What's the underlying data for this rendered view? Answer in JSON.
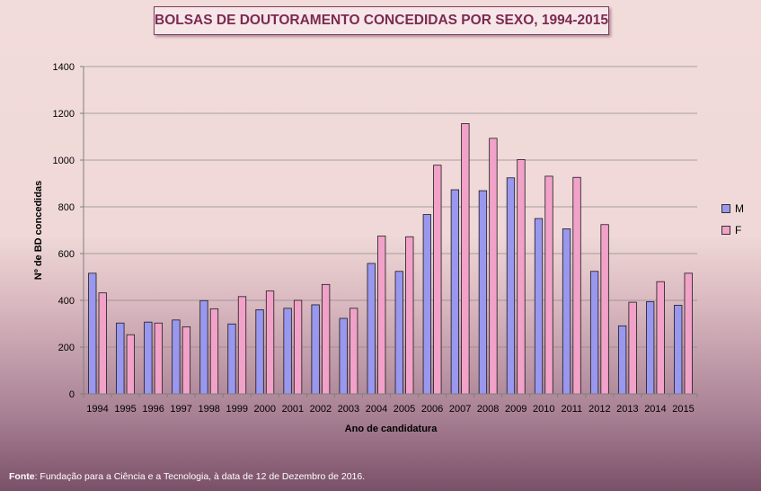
{
  "title": "BOLSAS DE DOUTORAMENTO CONCEDIDAS POR SEXO, 1994-2015",
  "source": {
    "label": "Fonte",
    "text": ": Fundação para a Ciência e a Tecnologia, à data de 12 de Dezembro de 2016."
  },
  "colors": {
    "M": "#9a97ee",
    "F": "#f2a2c8"
  },
  "chart_data": {
    "type": "bar",
    "title": "BOLSAS DE DOUTORAMENTO CONCEDIDAS POR SEXO, 1994-2015",
    "xlabel": "Ano de candidatura",
    "ylabel": "Nº de BD concedidas",
    "ylim": [
      0,
      1400
    ],
    "yticks": [
      0,
      200,
      400,
      600,
      800,
      1000,
      1200,
      1400
    ],
    "grid": true,
    "legend": "right",
    "categories": [
      "1994",
      "1995",
      "1996",
      "1997",
      "1998",
      "1999",
      "2000",
      "2001",
      "2002",
      "2003",
      "2004",
      "2005",
      "2006",
      "2007",
      "2008",
      "2009",
      "2010",
      "2011",
      "2012",
      "2013",
      "2014",
      "2015"
    ],
    "series": [
      {
        "name": "M",
        "values": [
          516,
          303,
          307,
          316,
          399,
          299,
          360,
          366,
          381,
          323,
          558,
          524,
          767,
          873,
          869,
          924,
          750,
          706,
          524,
          291,
          394,
          379
        ]
      },
      {
        "name": "F",
        "values": [
          432,
          253,
          303,
          287,
          364,
          416,
          440,
          400,
          468,
          366,
          675,
          672,
          978,
          1156,
          1093,
          1002,
          931,
          926,
          724,
          392,
          480,
          516
        ]
      }
    ]
  }
}
